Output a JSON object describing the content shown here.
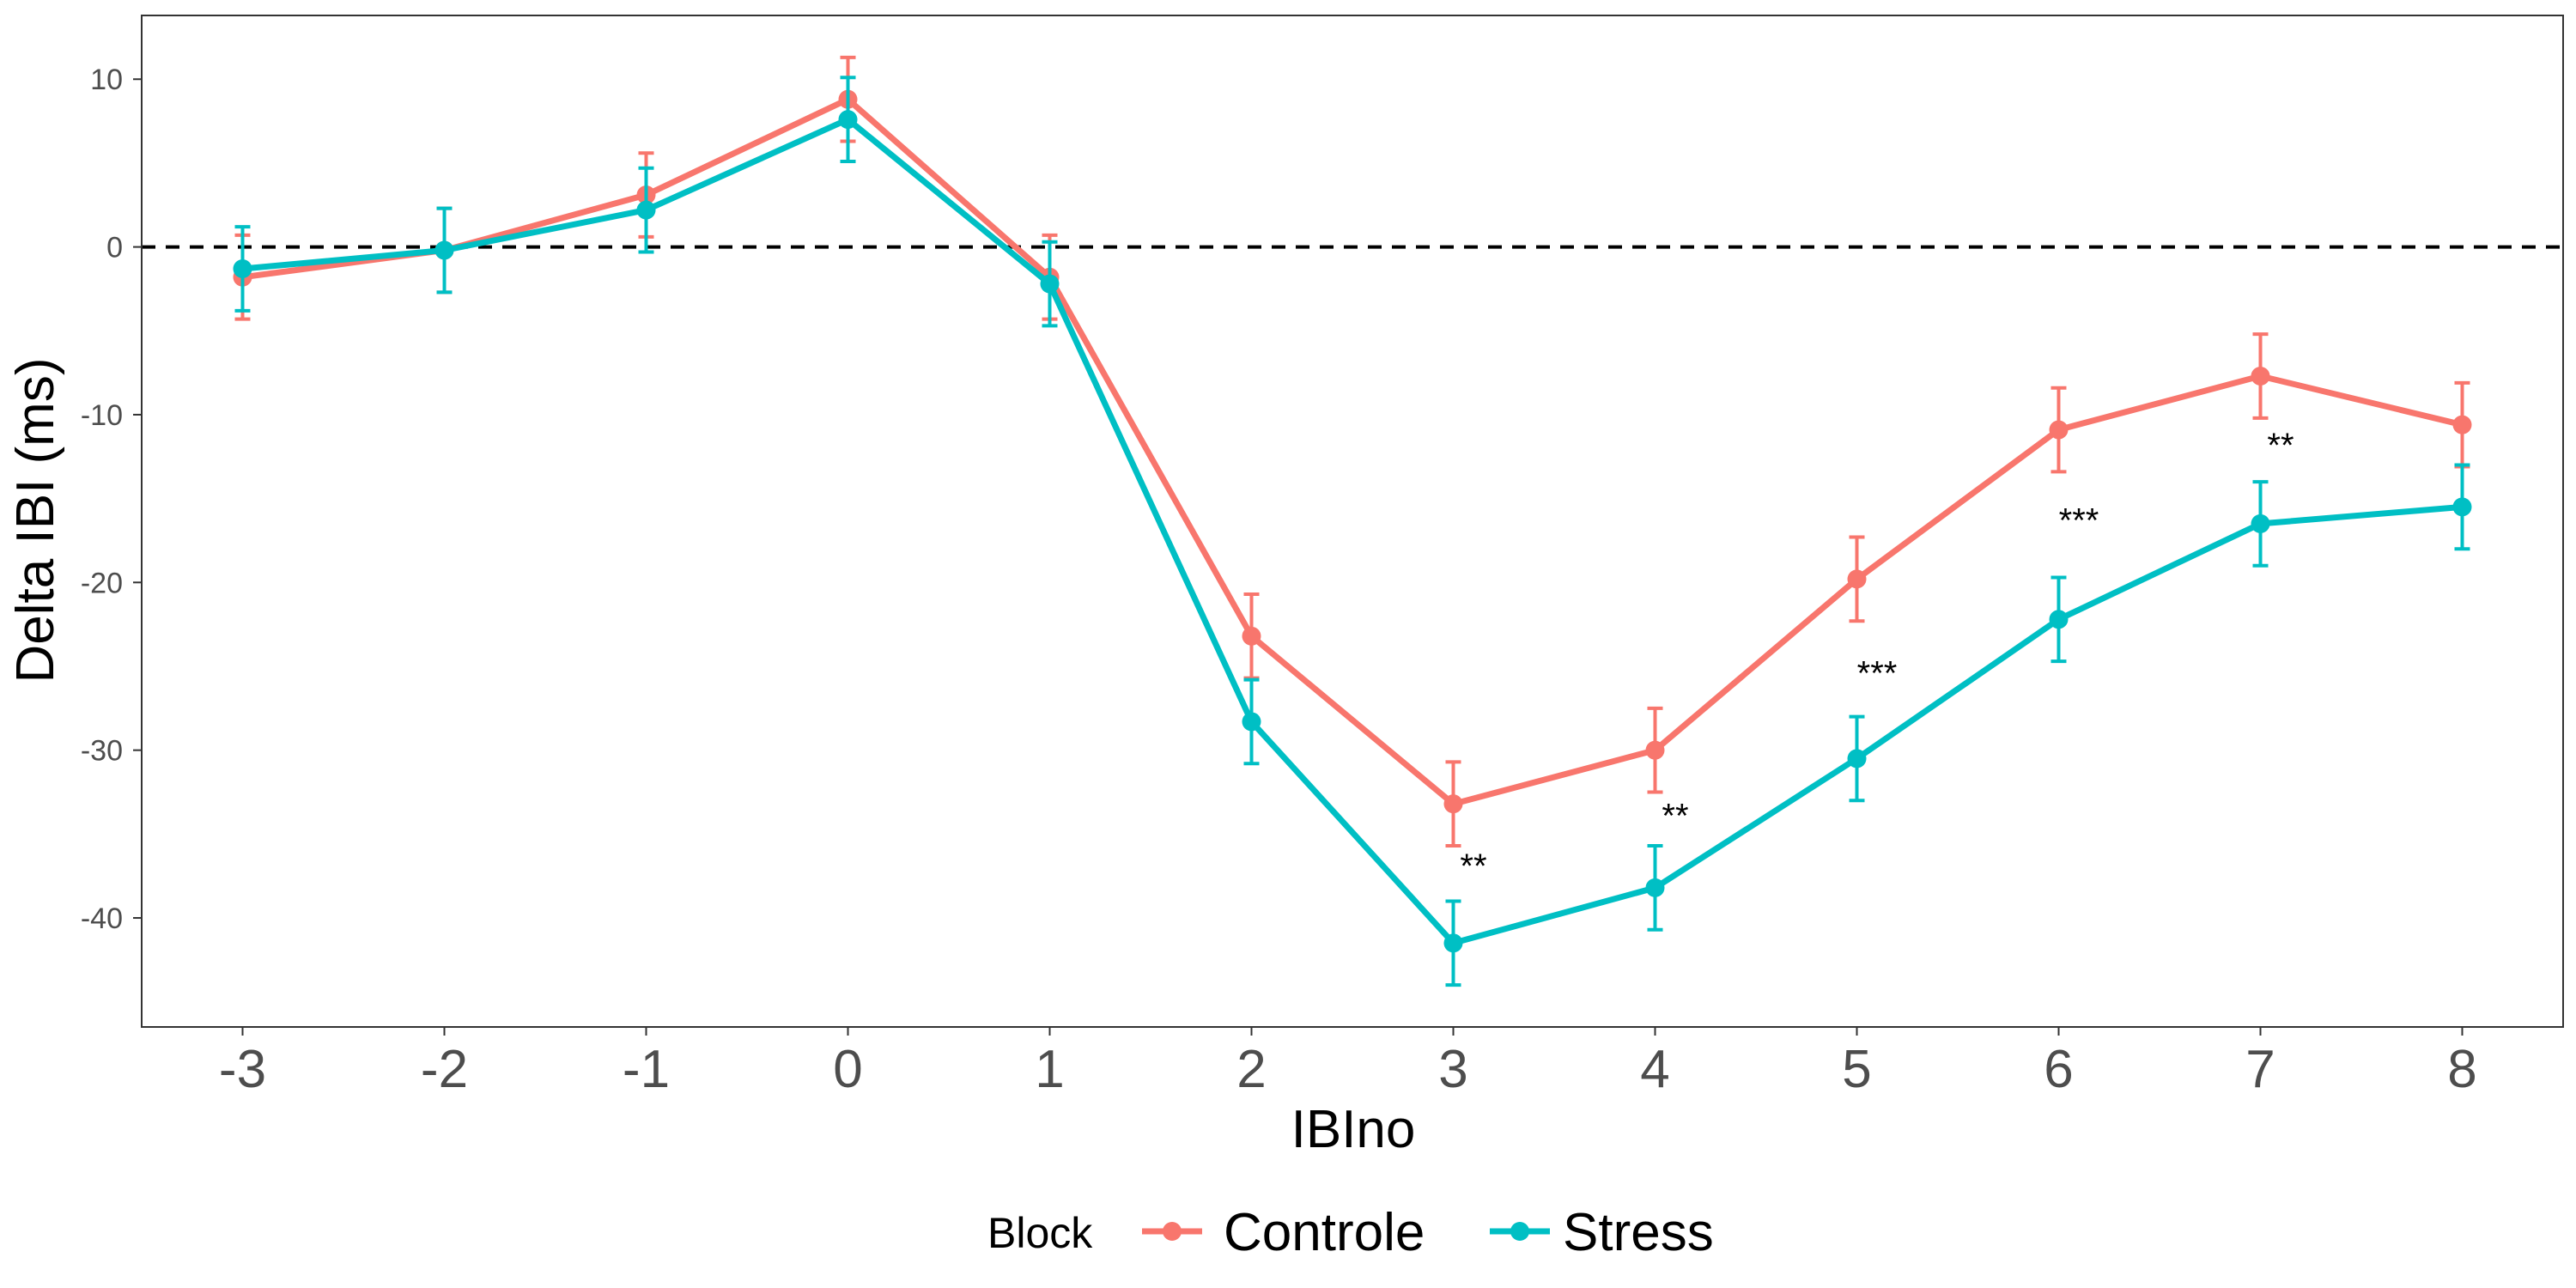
{
  "chart_data": {
    "type": "line",
    "xlabel": "IBIno",
    "ylabel": "Delta IBI (ms)",
    "x": [
      -3,
      -2,
      -1,
      0,
      1,
      2,
      3,
      4,
      5,
      6,
      7,
      8
    ],
    "x_tick_labels": [
      "-3",
      "-2",
      "-1",
      "0",
      "1",
      "2",
      "3",
      "4",
      "5",
      "6",
      "7",
      "8"
    ],
    "xlim": [
      -3.5,
      8.5
    ],
    "ylim": [
      -46.5,
      13.8
    ],
    "y_ticks": [
      10,
      0,
      -10,
      -20,
      -30,
      -40
    ],
    "y_tick_labels": [
      "10",
      "0",
      "-10",
      "-20",
      "-30",
      "-40"
    ],
    "reference_line": {
      "y": 0,
      "style": "dashed",
      "color": "#000000"
    },
    "grid": false,
    "legend": {
      "title": "Block",
      "position": "bottom"
    },
    "series": [
      {
        "name": "Controle",
        "color": "#F8766D",
        "values": [
          -1.8,
          -0.2,
          3.1,
          8.8,
          -1.8,
          -23.2,
          -33.2,
          -30.0,
          -19.8,
          -10.9,
          -7.7,
          -10.6
        ],
        "error": [
          2.5,
          2.5,
          2.5,
          2.5,
          2.5,
          2.5,
          2.5,
          2.5,
          2.5,
          2.5,
          2.5,
          2.5
        ]
      },
      {
        "name": "Stress",
        "color": "#00BFC4",
        "values": [
          -1.3,
          -0.2,
          2.2,
          7.6,
          -2.2,
          -28.3,
          -41.5,
          -38.2,
          -30.5,
          -22.2,
          -16.5,
          -15.5
        ],
        "error": [
          2.5,
          2.5,
          2.5,
          2.5,
          2.5,
          2.5,
          2.5,
          2.5,
          2.5,
          2.5,
          2.5,
          2.5
        ]
      }
    ],
    "annotations": [
      {
        "text": "**",
        "x": 3.1,
        "y": -37.6
      },
      {
        "text": "**",
        "x": 4.1,
        "y": -34.6
      },
      {
        "text": "***",
        "x": 5.1,
        "y": -26.1
      },
      {
        "text": "***",
        "x": 6.1,
        "y": -17.0
      },
      {
        "text": "**",
        "x": 7.1,
        "y": -12.5
      }
    ]
  }
}
